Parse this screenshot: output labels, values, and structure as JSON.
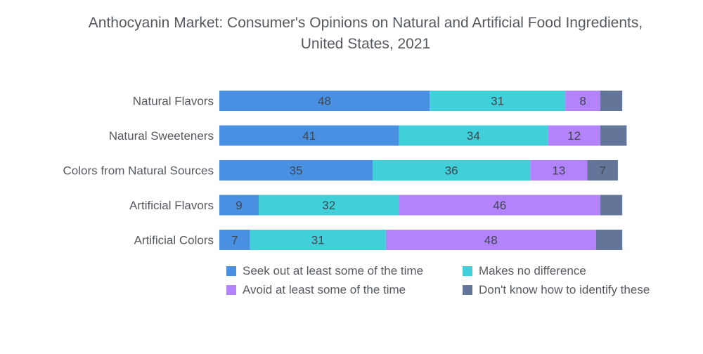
{
  "chart_data": {
    "type": "bar",
    "orientation": "horizontal",
    "stacked": true,
    "title": "Anthocyanin Market: Consumer's Opinions on Natural and Artificial Food Ingredients, United States, 2021",
    "title_lines": [
      "Anthocyanin Market: Consumer's Opinions on Natural and Artificial Food Ingredients,",
      "United States, 2021"
    ],
    "xlabel": "",
    "ylabel": "",
    "grid": false,
    "legend_position": "bottom",
    "categories": [
      "Natural Flavors",
      "Natural Sweeteners",
      "Colors from Natural Sources",
      "Artificial Flavors",
      "Artificial Colors"
    ],
    "series": [
      {
        "name": "Seek out at least some of the time",
        "color": "#4a90e2",
        "values": [
          48,
          41,
          35,
          9,
          7
        ],
        "labels_shown": [
          true,
          true,
          true,
          true,
          true
        ]
      },
      {
        "name": "Makes no difference",
        "color": "#41d0d9",
        "values": [
          31,
          34,
          36,
          32,
          31
        ],
        "labels_shown": [
          true,
          true,
          true,
          true,
          true
        ]
      },
      {
        "name": "Avoid at least some of the time",
        "color": "#b283fb",
        "values": [
          8,
          12,
          13,
          46,
          48
        ],
        "labels_shown": [
          true,
          true,
          true,
          true,
          true
        ]
      },
      {
        "name": "Don't know how to identify these",
        "color": "#637599",
        "values": [
          5,
          6,
          7,
          5,
          6
        ],
        "labels_shown": [
          false,
          false,
          true,
          false,
          false
        ]
      }
    ]
  }
}
